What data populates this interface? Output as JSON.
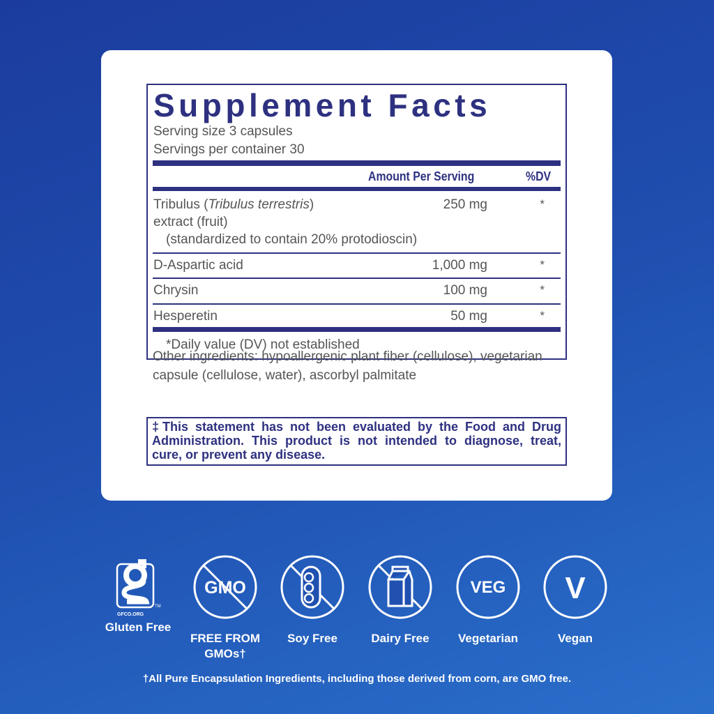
{
  "facts": {
    "title": "Supplement Facts",
    "serving_size": "Serving size  3 capsules",
    "servings_per_container": "Servings per container  30",
    "col_amount": "Amount Per Serving",
    "col_dv": "%DV",
    "rows": [
      {
        "name": "Tribulus (",
        "name_italic": "Tribulus terrestris",
        "name_end": ")",
        "line2": "extract (fruit)",
        "line3": "(standardized to contain 20% protodioscin)",
        "amount": "250 mg",
        "dv": "*"
      },
      {
        "name": "D-Aspartic acid",
        "amount": "1,000 mg",
        "dv": "*"
      },
      {
        "name": "Chrysin",
        "amount": "100 mg",
        "dv": "*"
      },
      {
        "name": "Hesperetin",
        "amount": "50 mg",
        "dv": "*"
      }
    ],
    "footnote": "*Daily value (DV) not established"
  },
  "other_ingredients": "Other ingredients: hypoallergenic plant fiber (cellulose), vegetarian capsule (cellulose, water), ascorbyl palmitate",
  "disclaimer": "‡This statement has not been evaluated by the Food and Drug Administration. This product is not intended to diagnose, treat, cure, or prevent any disease.",
  "badges": [
    {
      "icon": "gluten-free-logo",
      "logo_text": "GFCO.ORG",
      "label": "Gluten Free"
    },
    {
      "icon": "no-gmo-icon",
      "icon_text": "GMO",
      "label": "FREE FROM GMOs†"
    },
    {
      "icon": "soy-free-icon",
      "label": "Soy Free"
    },
    {
      "icon": "dairy-free-icon",
      "label": "Dairy Free"
    },
    {
      "icon": "vegetarian-icon",
      "icon_text": "VEG",
      "label": "Vegetarian"
    },
    {
      "icon": "vegan-icon",
      "icon_text": "V",
      "label": "Vegan"
    }
  ],
  "gmo_footnote": "†All Pure Encapsulation Ingredients, including those derived from corn, are GMO free.",
  "colors": {
    "navy": "#2e3180",
    "background": "#1f4fb0",
    "text": "#555555"
  }
}
